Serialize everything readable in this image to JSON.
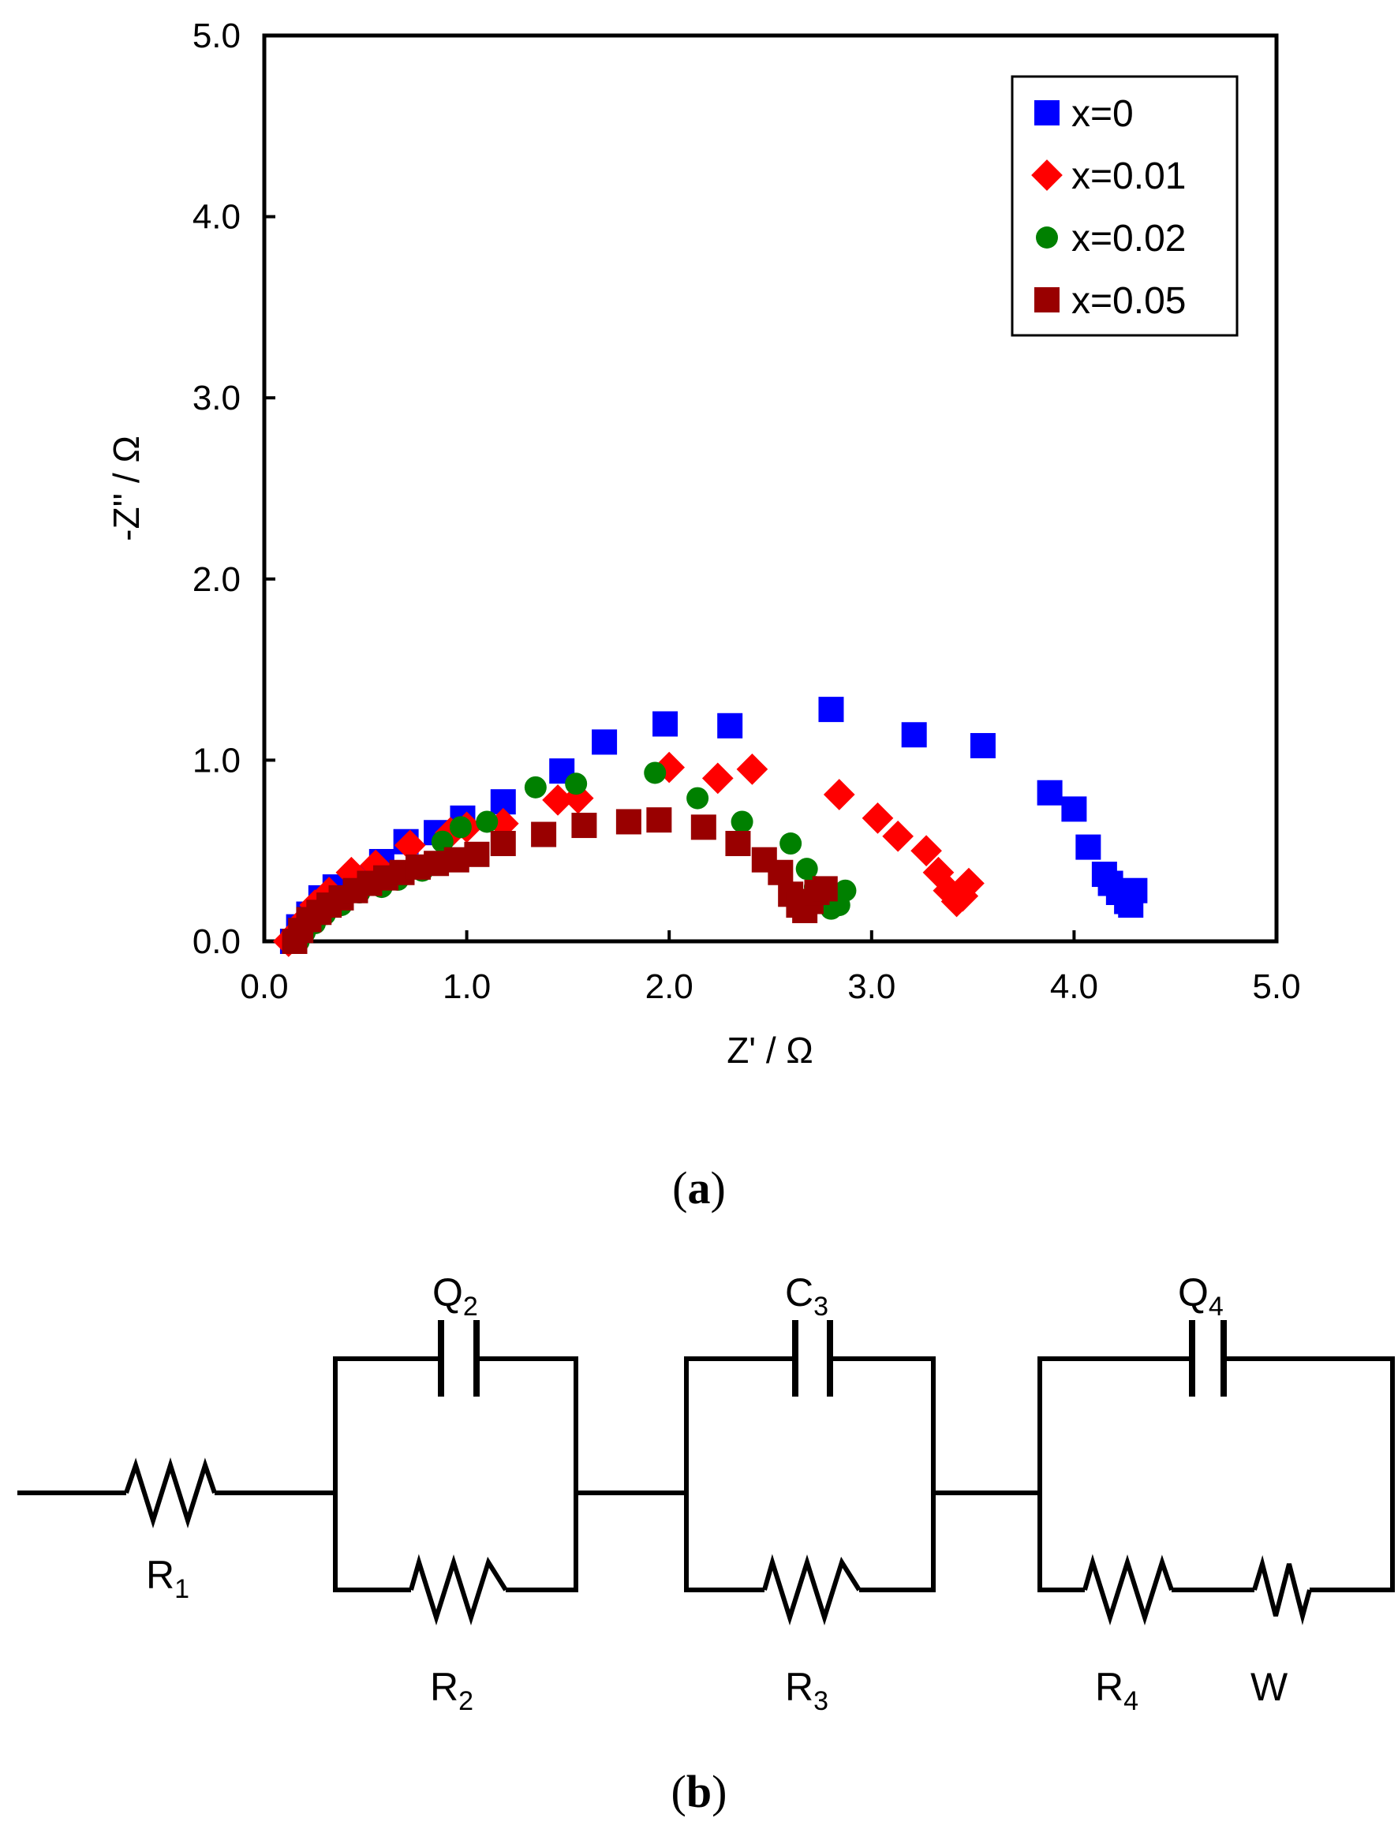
{
  "chart_data": {
    "type": "scatter",
    "title": "",
    "xlabel": "Z' / Ω",
    "ylabel": "-Z'' / Ω",
    "xlim": [
      0,
      5
    ],
    "ylim": [
      0,
      5
    ],
    "xticks": [
      "0.0",
      "1.0",
      "2.0",
      "3.0",
      "4.0",
      "5.0"
    ],
    "yticks": [
      "0.0",
      "1.0",
      "2.0",
      "3.0",
      "4.0",
      "5.0"
    ],
    "grid": false,
    "legend_position": "top-right",
    "series": [
      {
        "name": "x=0",
        "marker": "square",
        "color": "#0000ff",
        "x": [
          0.14,
          0.17,
          0.22,
          0.28,
          0.35,
          0.45,
          0.58,
          0.7,
          0.85,
          0.98,
          1.18,
          1.47,
          1.68,
          1.98,
          2.3,
          2.8,
          3.21,
          3.55,
          3.88,
          4.0,
          4.07,
          4.15,
          4.18,
          4.22,
          4.26,
          4.3,
          4.28
        ],
        "y": [
          0.0,
          0.08,
          0.15,
          0.24,
          0.3,
          0.35,
          0.44,
          0.55,
          0.6,
          0.68,
          0.77,
          0.94,
          1.1,
          1.2,
          1.19,
          1.28,
          1.14,
          1.08,
          0.82,
          0.73,
          0.52,
          0.37,
          0.32,
          0.27,
          0.22,
          0.28,
          0.2
        ]
      },
      {
        "name": "x=0.01",
        "marker": "diamond",
        "color": "#ff0000",
        "x": [
          0.12,
          0.16,
          0.2,
          0.25,
          0.32,
          0.43,
          0.55,
          0.72,
          0.92,
          1.0,
          1.18,
          1.45,
          1.55,
          2.0,
          2.24,
          2.41,
          2.84,
          3.03,
          3.13,
          3.27,
          3.33,
          3.38,
          3.42,
          3.45,
          3.48
        ],
        "y": [
          0.0,
          0.05,
          0.12,
          0.2,
          0.27,
          0.38,
          0.42,
          0.53,
          0.6,
          0.63,
          0.65,
          0.78,
          0.79,
          0.96,
          0.9,
          0.95,
          0.81,
          0.68,
          0.58,
          0.5,
          0.38,
          0.28,
          0.22,
          0.25,
          0.32
        ],
        "label_points": []
      },
      {
        "name": "x=0.02",
        "marker": "circle",
        "color": "#008000",
        "x": [
          0.17,
          0.2,
          0.25,
          0.3,
          0.38,
          0.47,
          0.58,
          0.66,
          0.78,
          0.88,
          0.97,
          1.1,
          1.34,
          1.54,
          1.93,
          2.14,
          2.36,
          2.6,
          2.68,
          2.72,
          2.8,
          2.84,
          2.87
        ],
        "y": [
          0.0,
          0.05,
          0.1,
          0.15,
          0.2,
          0.27,
          0.3,
          0.34,
          0.39,
          0.55,
          0.63,
          0.66,
          0.85,
          0.87,
          0.93,
          0.79,
          0.66,
          0.54,
          0.4,
          0.3,
          0.18,
          0.2,
          0.28
        ]
      },
      {
        "name": "x=0.05",
        "marker": "square",
        "color": "#990000",
        "x": [
          0.15,
          0.18,
          0.22,
          0.27,
          0.32,
          0.38,
          0.45,
          0.52,
          0.6,
          0.68,
          0.76,
          0.85,
          0.95,
          1.05,
          1.18,
          1.38,
          1.58,
          1.8,
          1.95,
          2.17,
          2.34,
          2.47,
          2.55,
          2.6,
          2.64,
          2.67,
          2.7,
          2.73,
          2.77
        ],
        "y": [
          0.0,
          0.06,
          0.12,
          0.16,
          0.2,
          0.24,
          0.28,
          0.32,
          0.35,
          0.38,
          0.41,
          0.43,
          0.45,
          0.48,
          0.54,
          0.59,
          0.64,
          0.66,
          0.67,
          0.63,
          0.54,
          0.45,
          0.38,
          0.26,
          0.2,
          0.17,
          0.22,
          0.27,
          0.29
        ]
      }
    ]
  },
  "figure": {
    "panel_a_label": "a",
    "panel_b_label": "b",
    "circuit": {
      "elements": [
        {
          "id": "R1",
          "symbol": "R",
          "sub": "1"
        },
        {
          "id": "Q2",
          "symbol": "Q",
          "sub": "2"
        },
        {
          "id": "R2",
          "symbol": "R",
          "sub": "2"
        },
        {
          "id": "C3",
          "symbol": "C",
          "sub": "3"
        },
        {
          "id": "R3",
          "symbol": "R",
          "sub": "3"
        },
        {
          "id": "Q4",
          "symbol": "Q",
          "sub": "4"
        },
        {
          "id": "R4",
          "symbol": "R",
          "sub": "4"
        },
        {
          "id": "W",
          "symbol": "W",
          "sub": ""
        }
      ]
    }
  }
}
